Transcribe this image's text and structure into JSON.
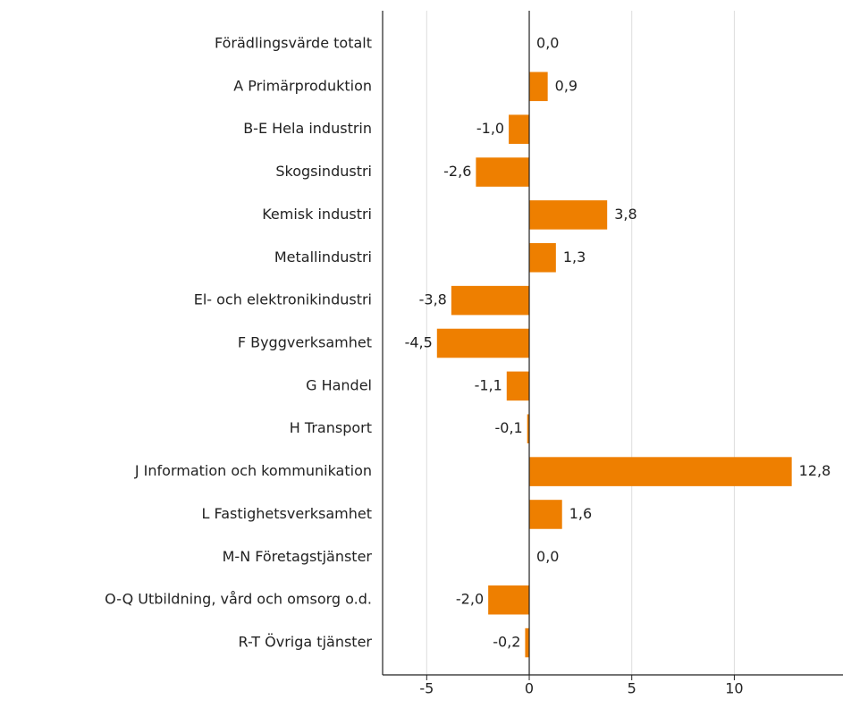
{
  "chart_data": {
    "type": "bar",
    "orientation": "horizontal",
    "categories": [
      "Förädlingsvärde totalt",
      "A Primärproduktion",
      "B-E Hela industrin",
      "Skogsindustri",
      "Kemisk industri",
      "Metallindustri",
      "El- och elektronikindustri",
      "F Byggverksamhet",
      "G Handel",
      "H Transport",
      "J Information och kommunikation",
      "L Fastighetsverksamhet",
      "M-N Företagstjänster",
      "O-Q Utbildning, vård och omsorg o.d.",
      "R-T Övriga tjänster"
    ],
    "values": [
      0.0,
      0.9,
      -1.0,
      -2.6,
      3.8,
      1.3,
      -3.8,
      -4.5,
      -1.1,
      -0.1,
      12.8,
      1.6,
      0.0,
      -2.0,
      -0.2
    ],
    "value_labels": [
      "0,0",
      "0,9",
      "-1,0",
      "-2,6",
      "3,8",
      "1,3",
      "-3,8",
      "-4,5",
      "-1,1",
      "-0,1",
      "12,8",
      "1,6",
      "0,0",
      "-2,0",
      "-0,2"
    ],
    "color": "#ee7f00",
    "xlim": [
      -7.15,
      15.3
    ],
    "xticks": [
      -5,
      0,
      5,
      10
    ],
    "grid": true
  }
}
